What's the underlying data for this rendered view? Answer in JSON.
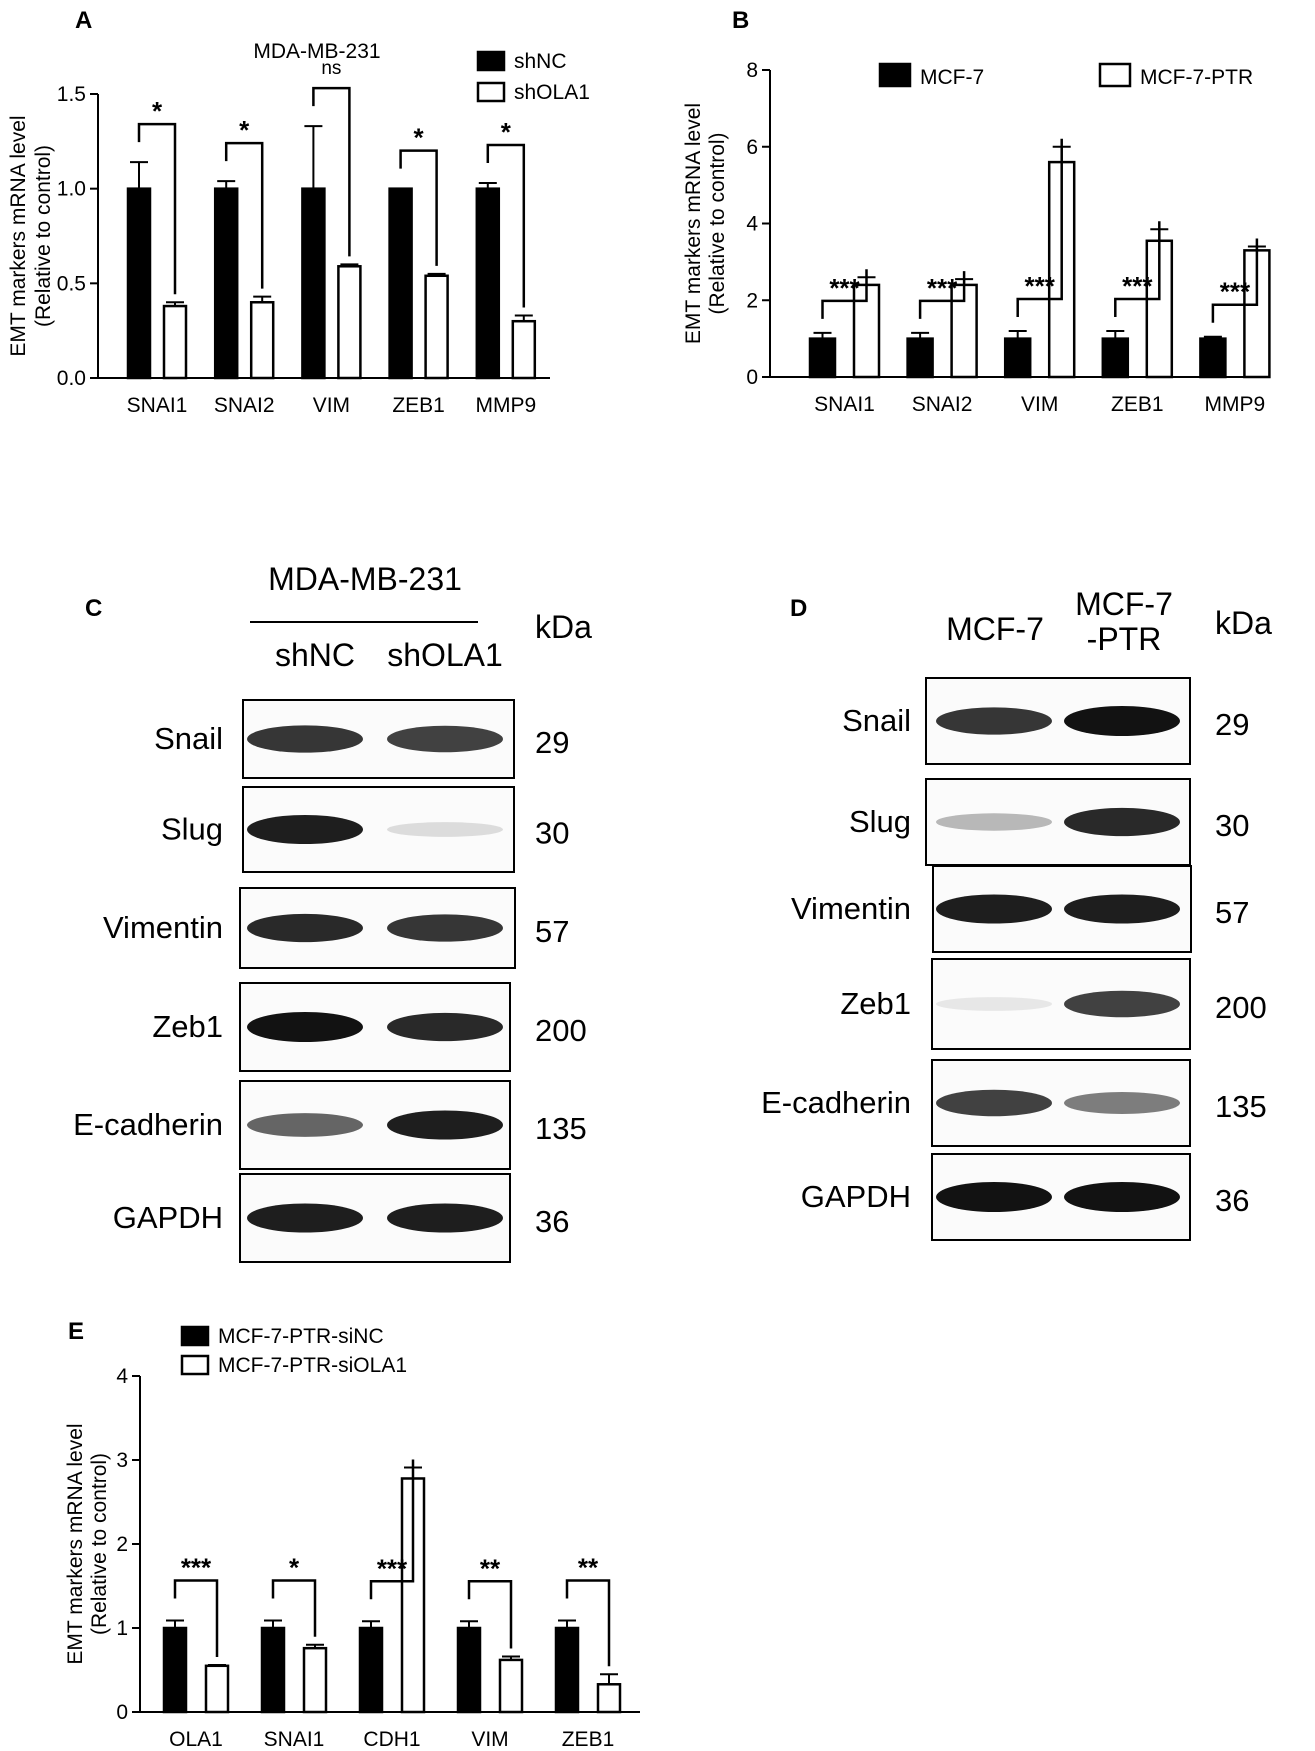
{
  "chart_data": [
    {
      "panel": "A",
      "type": "bar",
      "title": "MDA-MB-231",
      "ylabel_line1": "EMT markers mRNA level",
      "ylabel_line2": "(Relative to control)",
      "ylim": [
        0,
        1.5
      ],
      "yticks": [
        "0.0",
        "0.5",
        "1.0",
        "1.5"
      ],
      "categories": [
        "SNAI1",
        "SNAI2",
        "VIM",
        "ZEB1",
        "MMP9"
      ],
      "series": [
        {
          "name": "shNC",
          "fill": "#000000",
          "values": [
            1.0,
            1.0,
            1.0,
            1.0,
            1.0
          ],
          "errors": [
            0.14,
            0.04,
            0.33,
            0.0,
            0.03
          ]
        },
        {
          "name": "shOLA1",
          "fill": "#ffffff",
          "values": [
            0.38,
            0.4,
            0.59,
            0.54,
            0.3
          ],
          "errors": [
            0.02,
            0.03,
            0.01,
            0.01,
            0.03
          ]
        }
      ],
      "significance": [
        "*",
        "*",
        "ns",
        "*",
        "*"
      ],
      "legend_position": "top-right"
    },
    {
      "panel": "B",
      "type": "bar",
      "title": "",
      "ylabel_line1": "EMT markers mRNA level",
      "ylabel_line2": "(Relative to control)",
      "ylim": [
        0,
        8
      ],
      "yticks": [
        "0",
        "2",
        "4",
        "6",
        "8"
      ],
      "categories": [
        "SNAI1",
        "SNAI2",
        "VIM",
        "ZEB1",
        "MMP9"
      ],
      "series": [
        {
          "name": "MCF-7",
          "fill": "#000000",
          "values": [
            1.0,
            1.0,
            1.0,
            1.0,
            1.0
          ],
          "errors": [
            0.15,
            0.15,
            0.2,
            0.2,
            0.05
          ]
        },
        {
          "name": "MCF-7-PTR",
          "fill": "#ffffff",
          "values": [
            2.4,
            2.4,
            5.6,
            3.55,
            3.3
          ],
          "errors": [
            0.2,
            0.15,
            0.4,
            0.3,
            0.1
          ]
        }
      ],
      "significance": [
        "***",
        "***",
        "***",
        "***",
        "***"
      ],
      "legend_position": "top"
    },
    {
      "panel": "E",
      "type": "bar",
      "title": "",
      "ylabel_line1": "EMT markers mRNA level",
      "ylabel_line2": "(Relative to control)",
      "ylim": [
        0,
        4
      ],
      "yticks": [
        "0",
        "1",
        "2",
        "3",
        "4"
      ],
      "categories": [
        "OLA1",
        "SNAI1",
        "CDH1",
        "VIM",
        "ZEB1"
      ],
      "series": [
        {
          "name": "MCF-7-PTR-siNC",
          "fill": "#000000",
          "values": [
            1.0,
            1.0,
            1.0,
            1.0,
            1.0
          ],
          "errors": [
            0.09,
            0.09,
            0.08,
            0.08,
            0.09
          ]
        },
        {
          "name": "MCF-7-PTR-siOLA1",
          "fill": "#ffffff",
          "values": [
            0.55,
            0.76,
            2.78,
            0.62,
            0.33
          ],
          "errors": [
            0.01,
            0.04,
            0.13,
            0.04,
            0.12
          ]
        }
      ],
      "significance": [
        "***",
        "*",
        "***",
        "**",
        "**"
      ],
      "legend_position": "top-left"
    }
  ],
  "panel_letters": {
    "a": "A",
    "b": "B",
    "c": "C",
    "d": "D",
    "e": "E"
  },
  "blot_c": {
    "header": "MDA-MB-231",
    "lanes": [
      "shNC",
      "shOLA1"
    ],
    "kda_label": "kDa",
    "rows": [
      {
        "protein": "Snail",
        "kda": "29",
        "intensity": [
          0.85,
          0.8
        ]
      },
      {
        "protein": "Slug",
        "kda": "30",
        "intensity": [
          0.95,
          0.15
        ]
      },
      {
        "protein": "Vimentin",
        "kda": "57",
        "intensity": [
          0.9,
          0.85
        ]
      },
      {
        "protein": "Zeb1",
        "kda": "200",
        "intensity": [
          1.0,
          0.9
        ]
      },
      {
        "protein": "E-cadherin",
        "kda": "135",
        "intensity": [
          0.65,
          0.95
        ]
      },
      {
        "protein": "GAPDH",
        "kda": "36",
        "intensity": [
          0.95,
          0.95
        ]
      }
    ]
  },
  "blot_d": {
    "lanes": [
      "MCF-7",
      "MCF-7",
      "-PTR"
    ],
    "kda_label": "kDa",
    "rows": [
      {
        "protein": "Snail",
        "kda": "29",
        "intensity": [
          0.85,
          1.0
        ]
      },
      {
        "protein": "Slug",
        "kda": "30",
        "intensity": [
          0.3,
          0.9
        ]
      },
      {
        "protein": "Vimentin",
        "kda": "57",
        "intensity": [
          0.95,
          0.95
        ]
      },
      {
        "protein": "Zeb1",
        "kda": "200",
        "intensity": [
          0.1,
          0.8
        ]
      },
      {
        "protein": "E-cadherin",
        "kda": "135",
        "intensity": [
          0.8,
          0.55
        ]
      },
      {
        "protein": "GAPDH",
        "kda": "36",
        "intensity": [
          1.0,
          1.0
        ]
      }
    ]
  }
}
